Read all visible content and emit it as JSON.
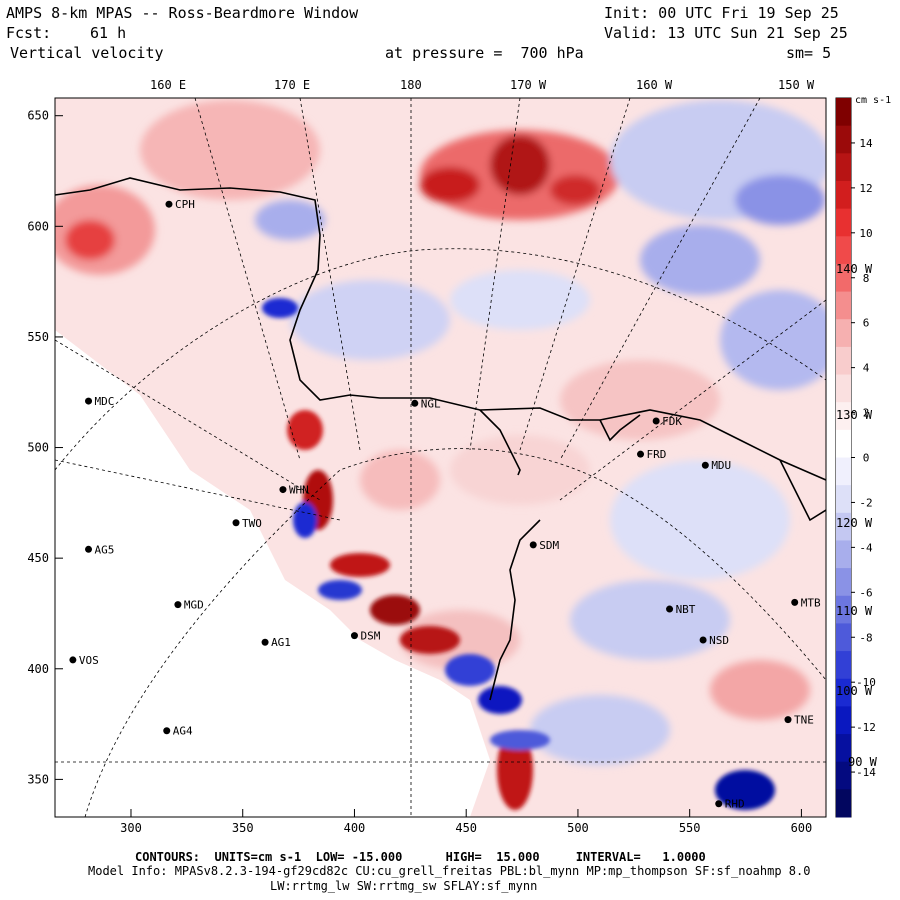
{
  "header": {
    "title": "AMPS 8-km MPAS -- Ross-Beardmore Window",
    "fcst_label": "Fcst:",
    "fcst_value": "61 h",
    "field": "Vertical velocity",
    "init": "Init: 00 UTC Fri 19 Sep 25",
    "valid": "Valid: 13 UTC Sun 21 Sep 25",
    "level": "at pressure =  700 hPa",
    "smoothing": "sm= 5"
  },
  "lon_labels_top": [
    "160 E",
    "170 E",
    "180",
    "170 W",
    "160 W",
    "150 W"
  ],
  "lon_labels_right": [
    "140 W",
    "130 W",
    "120 W",
    "110 W",
    "100 W",
    "90 W"
  ],
  "x_axis": {
    "ticks": [
      300,
      350,
      400,
      450,
      500,
      550,
      600
    ],
    "min": 266,
    "max": 611
  },
  "y_axis": {
    "ticks": [
      350,
      400,
      450,
      500,
      550,
      600,
      650
    ],
    "min": 333,
    "max": 658
  },
  "colorbar": {
    "units": "cm s-1",
    "labels": [
      "14",
      "12",
      "10",
      "8",
      "6",
      "4",
      "2",
      "0",
      "-2",
      "-4",
      "-6",
      "-8",
      "-10",
      "-12",
      "-14"
    ],
    "colors": [
      "#7f0000",
      "#9b0a0a",
      "#b71414",
      "#d21e1e",
      "#e83030",
      "#f04a4a",
      "#f26a6a",
      "#f48e8e",
      "#f6b0b0",
      "#f8cccc",
      "#fae0e0",
      "#fdf0f0",
      "#ffffff",
      "#f0f0fd",
      "#dde0f8",
      "#c4c8f2",
      "#a8aeec",
      "#8a92e6",
      "#6c76e0",
      "#4e5ada",
      "#3240d6",
      "#1a2ad2",
      "#0a18c0",
      "#0610a0",
      "#040a80",
      "#02065f"
    ]
  },
  "stations": [
    {
      "id": "CPH",
      "x": 317,
      "y": 610
    },
    {
      "id": "MDC",
      "x": 281,
      "y": 521
    },
    {
      "id": "NGL",
      "x": 427,
      "y": 520
    },
    {
      "id": "FDK",
      "x": 535,
      "y": 512
    },
    {
      "id": "FRD",
      "x": 528,
      "y": 497
    },
    {
      "id": "MDU",
      "x": 557,
      "y": 492
    },
    {
      "id": "WHN",
      "x": 368,
      "y": 481
    },
    {
      "id": "TWO",
      "x": 347,
      "y": 466
    },
    {
      "id": "AG5",
      "x": 281,
      "y": 454
    },
    {
      "id": "SDM",
      "x": 480,
      "y": 456
    },
    {
      "id": "MGD",
      "x": 321,
      "y": 429
    },
    {
      "id": "DSM",
      "x": 400,
      "y": 415
    },
    {
      "id": "NBT",
      "x": 541,
      "y": 427
    },
    {
      "id": "MTB",
      "x": 597,
      "y": 430
    },
    {
      "id": "AG1",
      "x": 360,
      "y": 412
    },
    {
      "id": "NSD",
      "x": 556,
      "y": 413
    },
    {
      "id": "VOS",
      "x": 274,
      "y": 404
    },
    {
      "id": "AG4",
      "x": 316,
      "y": 372
    },
    {
      "id": "TNE",
      "x": 594,
      "y": 377
    },
    {
      "id": "RHD",
      "x": 563,
      "y": 339
    }
  ],
  "footer": {
    "contours": "CONTOURS:  UNITS=cm s-1  LOW= -15.000      HIGH=  15.000     INTERVAL=   1.0000",
    "model_info": "Model Info: MPASv8.2.3-194-gf29cd82c CU:cu_grell_freitas PBL:bl_mynn MP:mp_thompson SF:sf_noahmp 8.0",
    "physics": "LW:rrtmg_lw SW:rrtmg_sw SFLAY:sf_mynn"
  }
}
